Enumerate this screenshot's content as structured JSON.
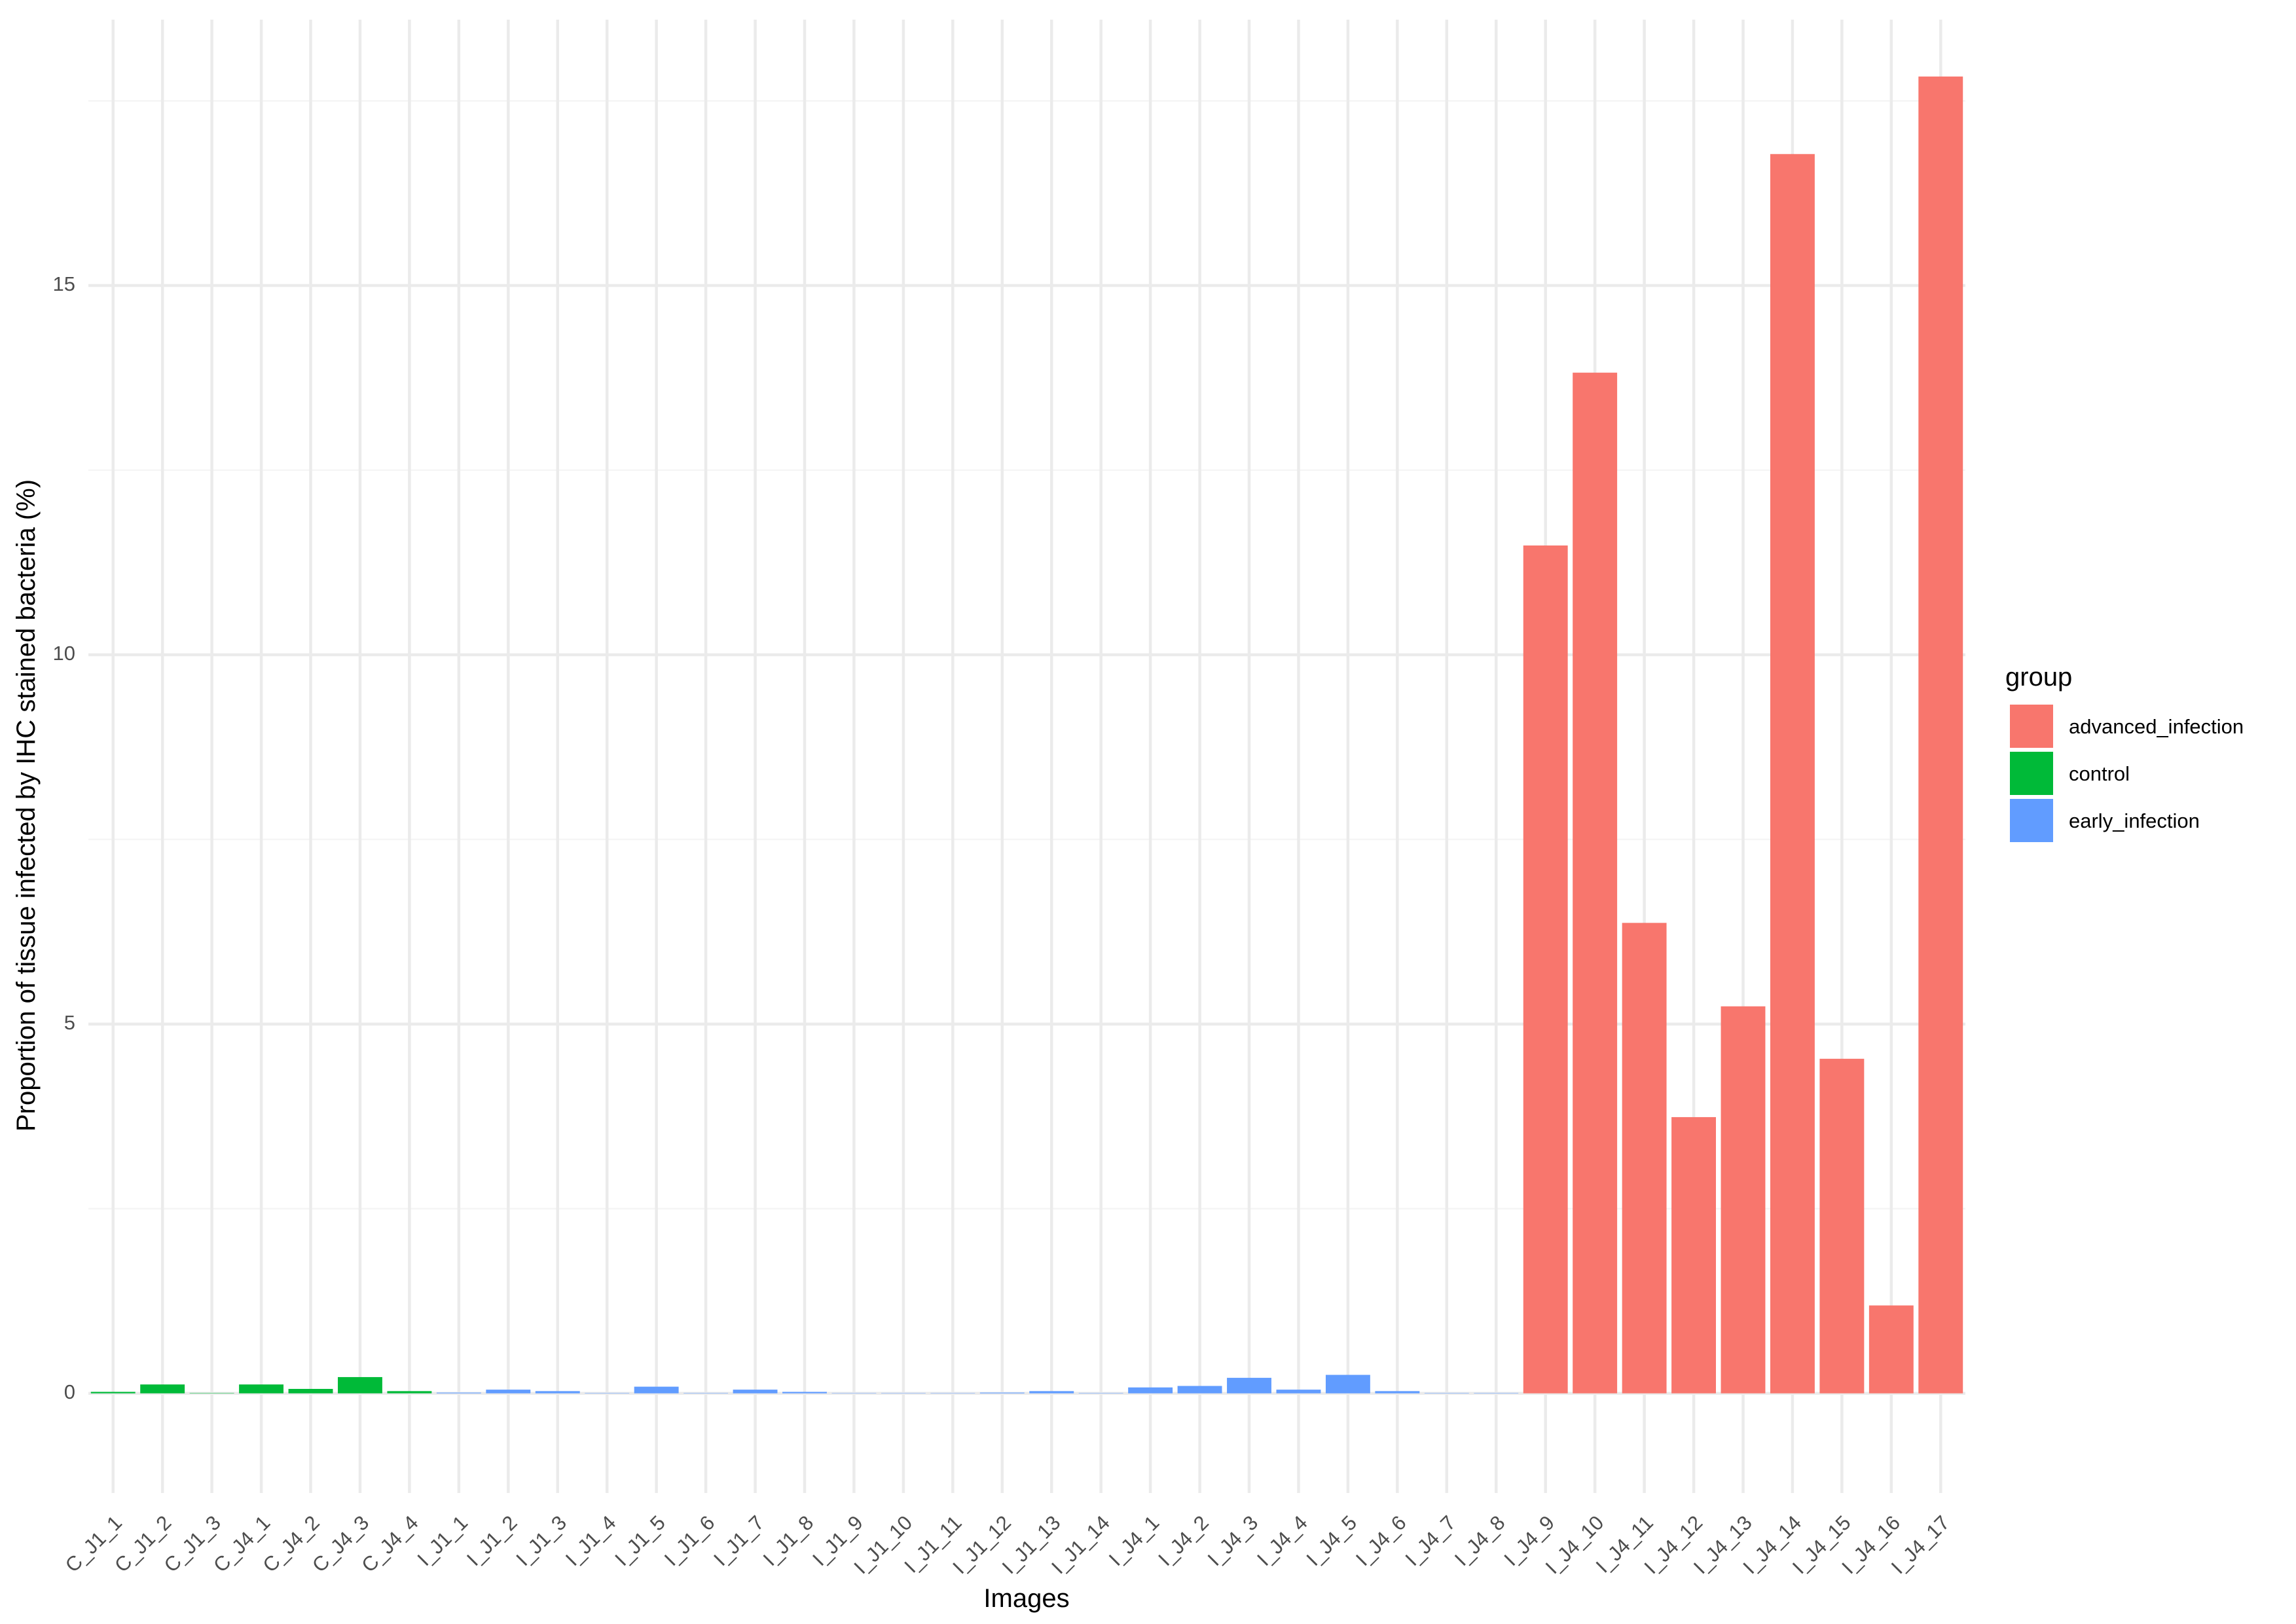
{
  "chart_data": {
    "type": "bar",
    "title": "",
    "xlabel": "Images",
    "ylabel": "Proportion of tissue infected by IHC stained bacteria (%)",
    "ylim": [
      -1.35,
      18.6
    ],
    "y_ticks": [
      0,
      5,
      10,
      15
    ],
    "y_minor_ticks": [
      2.5,
      7.5,
      12.5,
      17.5
    ],
    "grid": true,
    "legend": {
      "title": "group",
      "position": "right",
      "items": [
        {
          "label": "advanced_infection",
          "color": "#F8766D"
        },
        {
          "label": "control",
          "color": "#00BA38"
        },
        {
          "label": "early_infection",
          "color": "#619CFF"
        }
      ]
    },
    "categories": [
      "C_J1_1",
      "C_J1_2",
      "C_J1_3",
      "C_J4_1",
      "C_J4_2",
      "C_J4_3",
      "C_J4_4",
      "I_J1_1",
      "I_J1_2",
      "I_J1_3",
      "I_J1_4",
      "I_J1_5",
      "I_J1_6",
      "I_J1_7",
      "I_J1_8",
      "I_J1_9",
      "I_J1_10",
      "I_J1_11",
      "I_J1_12",
      "I_J1_13",
      "I_J1_14",
      "I_J4_1",
      "I_J4_2",
      "I_J4_3",
      "I_J4_4",
      "I_J4_5",
      "I_J4_6",
      "I_J4_7",
      "I_J4_8",
      "I_J4_9",
      "I_J4_10",
      "I_J4_11",
      "I_J4_12",
      "I_J4_13",
      "I_J4_14",
      "I_J4_15",
      "I_J4_16",
      "I_J4_17"
    ],
    "values": [
      0.02,
      0.12,
      0.005,
      0.12,
      0.06,
      0.22,
      0.03,
      0.01,
      0.05,
      0.03,
      0.005,
      0.09,
      0.005,
      0.05,
      0.02,
      0.003,
      0.003,
      0.003,
      0.01,
      0.03,
      0.005,
      0.08,
      0.1,
      0.21,
      0.05,
      0.25,
      0.03,
      0.005,
      0.005,
      11.48,
      13.82,
      6.37,
      3.74,
      5.24,
      16.78,
      4.53,
      1.19,
      17.83
    ],
    "groups": [
      "control",
      "control",
      "control",
      "control",
      "control",
      "control",
      "control",
      "early_infection",
      "early_infection",
      "early_infection",
      "early_infection",
      "early_infection",
      "early_infection",
      "early_infection",
      "early_infection",
      "early_infection",
      "early_infection",
      "early_infection",
      "early_infection",
      "early_infection",
      "early_infection",
      "early_infection",
      "early_infection",
      "early_infection",
      "early_infection",
      "early_infection",
      "early_infection",
      "early_infection",
      "early_infection",
      "advanced_infection",
      "advanced_infection",
      "advanced_infection",
      "advanced_infection",
      "advanced_infection",
      "advanced_infection",
      "advanced_infection",
      "advanced_infection",
      "advanced_infection"
    ]
  }
}
